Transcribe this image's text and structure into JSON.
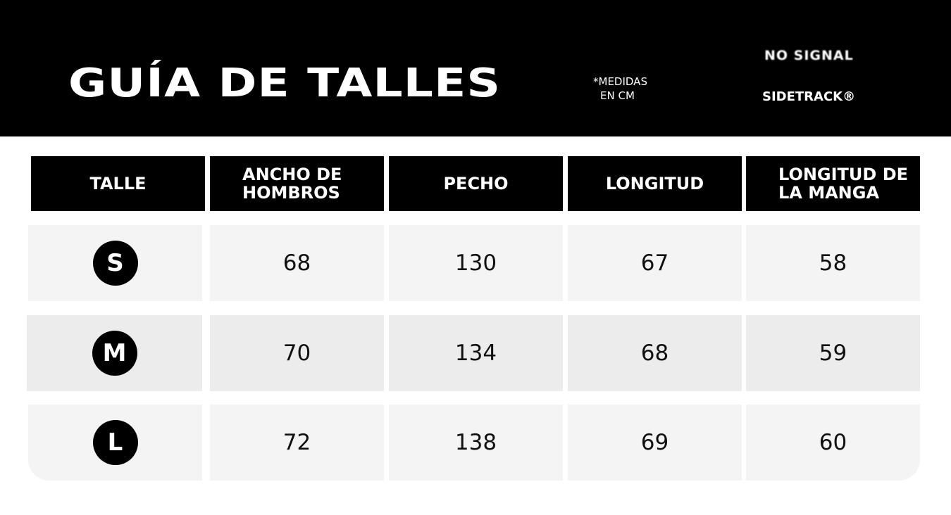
{
  "header": {
    "title": "GUÍA DE TALLES",
    "note_line1": "*MEDIDAS",
    "note_line2": "EN CM",
    "brand_1": "NO SIGNAL",
    "brand_2": "SIDETRACK®"
  },
  "table": {
    "columns": [
      "TALLE",
      "ANCHO DE HOMBROS",
      "PECHO",
      "LONGITUD",
      "LONGITUD DE LA MANGA"
    ],
    "column_lines": [
      [
        "TALLE"
      ],
      [
        "ANCHO DE",
        "HOMBROS"
      ],
      [
        "PECHO"
      ],
      [
        "LONGITUD"
      ],
      [
        "LONGITUD DE",
        "LA MANGA"
      ]
    ],
    "rows": [
      {
        "size": "S",
        "values": [
          "68",
          "130",
          "67",
          "58"
        ]
      },
      {
        "size": "M",
        "values": [
          "70",
          "134",
          "68",
          "59"
        ]
      },
      {
        "size": "L",
        "values": [
          "72",
          "138",
          "69",
          "60"
        ]
      }
    ]
  },
  "colors": {
    "banner": "#000000",
    "row_light": "#f4f4f4",
    "row_dark": "#ececec"
  }
}
